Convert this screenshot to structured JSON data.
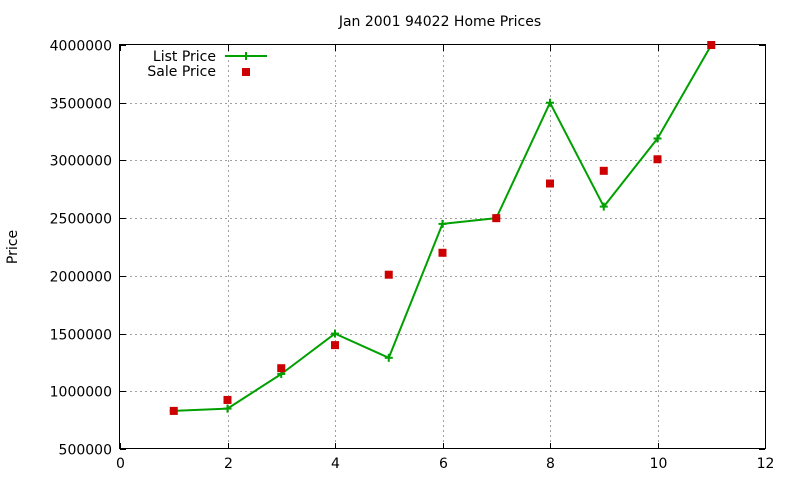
{
  "chart_data": {
    "type": "line",
    "title": "Jan 2001 94022 Home Prices",
    "xlabel": "",
    "ylabel": "Price",
    "xlim": [
      0,
      12
    ],
    "ylim": [
      500000,
      4000000
    ],
    "x_ticks": [
      0,
      2,
      4,
      6,
      8,
      10,
      12
    ],
    "y_ticks": [
      500000,
      1000000,
      1500000,
      2000000,
      2500000,
      3000000,
      3500000,
      4000000
    ],
    "grid": true,
    "legend_position": "top-left",
    "series": [
      {
        "name": "List Price",
        "style": "line-with-plus-markers",
        "color": "#00a000",
        "x": [
          1,
          2,
          3,
          4,
          5,
          6,
          7,
          8,
          9,
          10,
          11
        ],
        "y": [
          830000,
          850000,
          1150000,
          1500000,
          1290000,
          2450000,
          2500000,
          3500000,
          2600000,
          3190000,
          4000000
        ]
      },
      {
        "name": "Sale Price",
        "style": "square-markers",
        "color": "#cc0000",
        "x": [
          1,
          2,
          3,
          4,
          5,
          6,
          7,
          8,
          9,
          10,
          11
        ],
        "y": [
          830000,
          925000,
          1200000,
          1400000,
          2010000,
          2200000,
          2500000,
          2800000,
          2910000,
          3010000,
          4000000
        ]
      }
    ]
  }
}
